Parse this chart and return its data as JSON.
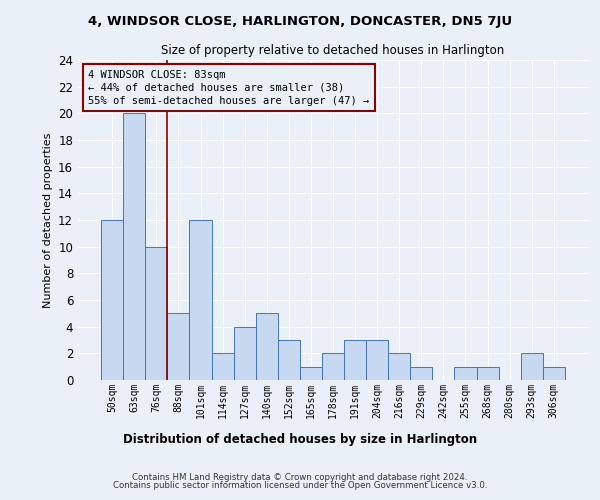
{
  "title": "4, WINDSOR CLOSE, HARLINGTON, DONCASTER, DN5 7JU",
  "subtitle": "Size of property relative to detached houses in Harlington",
  "xlabel_bottom": "Distribution of detached houses by size in Harlington",
  "ylabel": "Number of detached properties",
  "bar_values": [
    12,
    20,
    10,
    5,
    12,
    2,
    4,
    5,
    3,
    1,
    2,
    3,
    3,
    2,
    1,
    0,
    1,
    1,
    0,
    2,
    1
  ],
  "categories": [
    "50sqm",
    "63sqm",
    "76sqm",
    "88sqm",
    "101sqm",
    "114sqm",
    "127sqm",
    "140sqm",
    "152sqm",
    "165sqm",
    "178sqm",
    "191sqm",
    "204sqm",
    "216sqm",
    "229sqm",
    "242sqm",
    "255sqm",
    "268sqm",
    "280sqm",
    "293sqm",
    "306sqm"
  ],
  "bar_color": "#c6d9f0",
  "bar_edgecolor": "#4472c4",
  "vline_x": 2.5,
  "vline_color": "#8B0000",
  "ylim": [
    0,
    24
  ],
  "yticks": [
    0,
    2,
    4,
    6,
    8,
    10,
    12,
    14,
    16,
    18,
    20,
    22,
    24
  ],
  "annotation_text": "4 WINDSOR CLOSE: 83sqm\n← 44% of detached houses are smaller (38)\n55% of semi-detached houses are larger (47) →",
  "annotation_box_edgecolor": "#8B0000",
  "bg_color": "#eaf0f8",
  "grid_color": "#ffffff",
  "footnote1": "Contains HM Land Registry data © Crown copyright and database right 2024.",
  "footnote2": "Contains public sector information licensed under the Open Government Licence v3.0."
}
